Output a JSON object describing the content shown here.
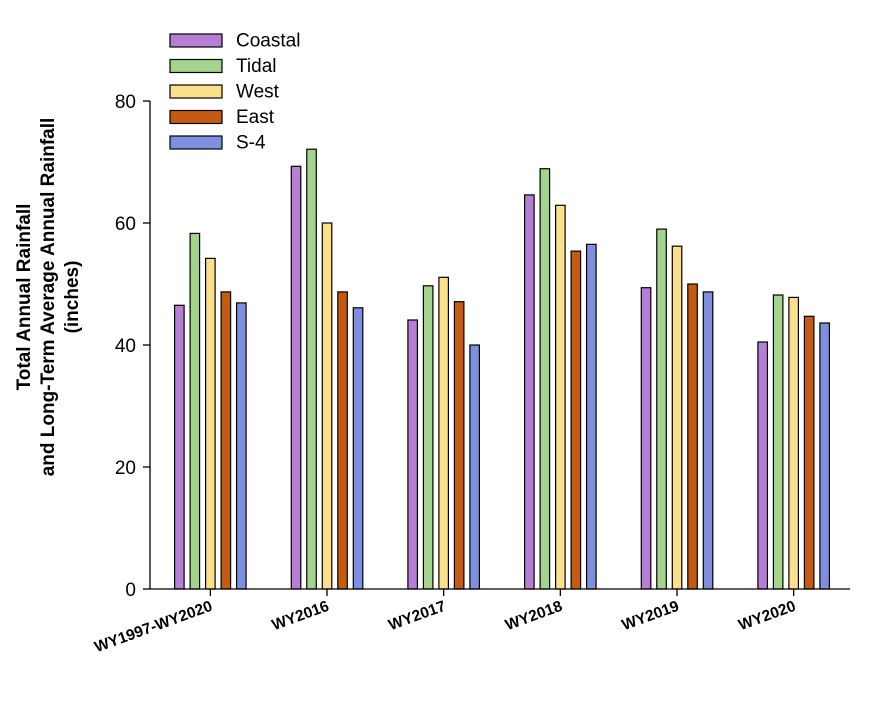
{
  "chart_data": {
    "type": "bar",
    "ylabel_lines": [
      "Total Annual Rainfall",
      "and Long-Term Average Annual Rainfall",
      "(inches)"
    ],
    "ylim": [
      0,
      80
    ],
    "yticks": [
      0,
      20,
      40,
      60,
      80
    ],
    "categories": [
      "WY1997-WY2020",
      "WY2016",
      "WY2017",
      "WY2018",
      "WY2019",
      "WY2020"
    ],
    "series": [
      {
        "name": "Coastal",
        "color": "#b57fd6",
        "values": [
          46.5,
          69.3,
          44.1,
          64.6,
          49.4,
          40.5
        ]
      },
      {
        "name": "Tidal",
        "color": "#a2d48e",
        "values": [
          58.3,
          72.1,
          49.7,
          68.9,
          59.0,
          48.2
        ]
      },
      {
        "name": "West",
        "color": "#fbdf8a",
        "values": [
          54.2,
          60.0,
          51.1,
          62.9,
          56.2,
          47.8
        ]
      },
      {
        "name": "East",
        "color": "#c55a11",
        "values": [
          48.7,
          48.7,
          47.1,
          55.4,
          50.0,
          44.7
        ]
      },
      {
        "name": "S-4",
        "color": "#7f8fe0",
        "values": [
          46.9,
          46.1,
          40.0,
          56.5,
          48.7,
          43.6
        ]
      }
    ],
    "legend_position": "top-left",
    "grid": false
  }
}
